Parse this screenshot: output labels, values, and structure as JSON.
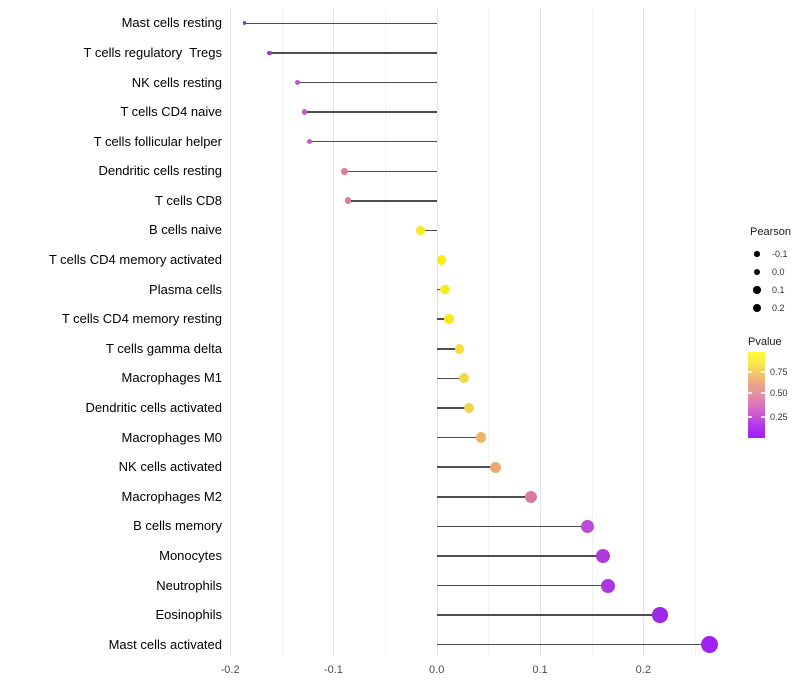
{
  "chart_data": {
    "type": "scatter",
    "style": "lollipop",
    "title": "",
    "xlabel": "",
    "ylabel": "",
    "baseline": 0,
    "categories": [
      "Mast cells resting",
      "T cells regulatory  Tregs",
      "NK cells resting",
      "T cells CD4 naive",
      "T cells follicular helper",
      "Dendritic cells resting",
      "T cells CD8",
      "B cells naive",
      "T cells CD4 memory activated",
      "Plasma cells",
      "T cells CD4 memory resting",
      "T cells gamma delta",
      "Macrophages M1",
      "Dendritic cells activated",
      "Macrophages M0",
      "NK cells activated",
      "Macrophages M2",
      "B cells memory",
      "Monocytes",
      "Neutrophils",
      "Eosinophils",
      "Mast cells activated"
    ],
    "values": [
      -0.186,
      -0.162,
      -0.135,
      -0.128,
      -0.123,
      -0.089,
      -0.086,
      -0.016,
      0.005,
      0.008,
      0.012,
      0.022,
      0.026,
      0.031,
      0.043,
      0.057,
      0.091,
      0.146,
      0.161,
      0.166,
      0.216,
      0.264
    ],
    "point_colors": [
      "#8E2BD1",
      "#9838CF",
      "#C355CB",
      "#C459C8",
      "#C65DC8",
      "#DE7AA0",
      "#DD7B9D",
      "#F7E926",
      "#F9ED18",
      "#F9ED18",
      "#F8E822",
      "#F4DE38",
      "#F3DA42",
      "#F1D24D",
      "#EDB566",
      "#EBAA71",
      "#DA79A0",
      "#BC4BD5",
      "#AF3ADC",
      "#AC37DF",
      "#9D28E8",
      "#9D22F0"
    ],
    "x_ticks": [
      "-0.2",
      "-0.1",
      "0.0",
      "0.1",
      "0.2"
    ],
    "x_tick_values": [
      -0.2,
      -0.1,
      0.0,
      0.1,
      0.2
    ],
    "xlim": [
      -0.2085,
      0.2865
    ],
    "grid_step": 0.05,
    "grid_on": true,
    "stem_color": "#4d4d4d",
    "legend_position": "right"
  },
  "legend_size": {
    "title": "Pearson",
    "items": [
      {
        "label": "-0.1",
        "value": -0.1
      },
      {
        "label": "0.0",
        "value": 0.0
      },
      {
        "label": "0.1",
        "value": 0.1
      },
      {
        "label": "0.2",
        "value": 0.2
      }
    ]
  },
  "legend_color": {
    "title": "Pvalue",
    "tick_labels": [
      "0.75",
      "0.50",
      "0.25"
    ],
    "gradient_top_to_bottom": [
      "#FCFB33",
      "#F9E94C",
      "#F2C76B",
      "#ECA588",
      "#E48FA5",
      "#D974BE",
      "#C852D8",
      "#B133EC",
      "#A01DFB"
    ]
  }
}
